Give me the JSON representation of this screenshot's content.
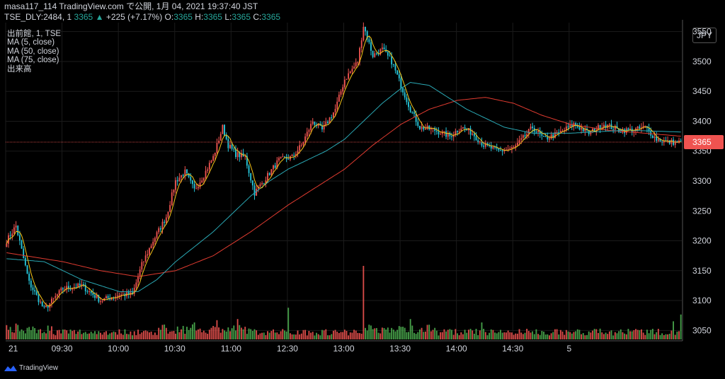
{
  "header": {
    "line1": "masa117_114 TradingView.com で公開, 1月 04, 2021 19:37:40 JST",
    "symbol": "TSE_DLY:2484, 1",
    "last": "3365",
    "arrow": "▲",
    "change": "+225 (+7.17%)",
    "o_label": "O:",
    "o": "3365",
    "h_label": "H:",
    "h": "3365",
    "l_label": "L:",
    "l": "3365",
    "c_label": "C:",
    "c": "3365"
  },
  "legend": {
    "main": "出前館, 1, TSE",
    "ma5": "MA (5, close)",
    "ma50": "MA (50, close)",
    "ma75": "MA (75, close)",
    "volume": "出来高"
  },
  "currency": "JPY",
  "brand": "TradingView",
  "colors": {
    "up": "#ef5350",
    "down": "#26c6da",
    "vol_up": "#ef5350",
    "vol_down": "#4caf50",
    "ma5": "#f5c518",
    "ma50": "#2aa9b5",
    "ma75": "#e03b30",
    "price_line": "#ef5350",
    "grid": "#1b1b1b"
  },
  "chart_data": {
    "type": "candlestick",
    "x_ticks": [
      "21",
      "09:30",
      "10:00",
      "10:30",
      "11:00",
      "12:30",
      "13:00",
      "13:30",
      "14:00",
      "14:30",
      "5"
    ],
    "x_tick_positions": [
      "09:00",
      "09:30",
      "10:00",
      "10:30",
      "11:00",
      "12:30",
      "13:00",
      "13:30",
      "14:00",
      "14:30",
      "15:00"
    ],
    "y_ticks": [
      3050,
      3100,
      3150,
      3200,
      3250,
      3300,
      3350,
      3400,
      3450,
      3500,
      3550
    ],
    "ylim": [
      3035,
      3565
    ],
    "last_price": 3365,
    "last_price_label": "3365",
    "close_anchors": [
      {
        "t": 0,
        "v": 3200
      },
      {
        "t": 5,
        "v": 3225
      },
      {
        "t": 12,
        "v": 3130
      },
      {
        "t": 20,
        "v": 3085
      },
      {
        "t": 30,
        "v": 3120
      },
      {
        "t": 40,
        "v": 3125
      },
      {
        "t": 50,
        "v": 3100
      },
      {
        "t": 60,
        "v": 3110
      },
      {
        "t": 67,
        "v": 3110
      },
      {
        "t": 72,
        "v": 3160
      },
      {
        "t": 78,
        "v": 3200
      },
      {
        "t": 85,
        "v": 3240
      },
      {
        "t": 90,
        "v": 3300
      },
      {
        "t": 95,
        "v": 3315
      },
      {
        "t": 100,
        "v": 3285
      },
      {
        "t": 105,
        "v": 3310
      },
      {
        "t": 110,
        "v": 3340
      },
      {
        "t": 115,
        "v": 3390
      },
      {
        "t": 118,
        "v": 3360
      },
      {
        "t": 122,
        "v": 3345
      },
      {
        "t": 127,
        "v": 3340
      },
      {
        "t": 132,
        "v": 3280
      },
      {
        "t": 138,
        "v": 3305
      },
      {
        "t": 145,
        "v": 3335
      },
      {
        "t": 152,
        "v": 3340
      },
      {
        "t": 157,
        "v": 3360
      },
      {
        "t": 163,
        "v": 3400
      },
      {
        "t": 168,
        "v": 3385
      },
      {
        "t": 175,
        "v": 3420
      },
      {
        "t": 180,
        "v": 3470
      },
      {
        "t": 187,
        "v": 3500
      },
      {
        "t": 190,
        "v": 3560
      },
      {
        "t": 195,
        "v": 3510
      },
      {
        "t": 200,
        "v": 3520
      },
      {
        "t": 205,
        "v": 3500
      },
      {
        "t": 210,
        "v": 3460
      },
      {
        "t": 215,
        "v": 3420
      },
      {
        "t": 220,
        "v": 3390
      },
      {
        "t": 228,
        "v": 3385
      },
      {
        "t": 236,
        "v": 3375
      },
      {
        "t": 242,
        "v": 3390
      },
      {
        "t": 248,
        "v": 3380
      },
      {
        "t": 254,
        "v": 3360
      },
      {
        "t": 262,
        "v": 3350
      },
      {
        "t": 270,
        "v": 3355
      },
      {
        "t": 276,
        "v": 3375
      },
      {
        "t": 280,
        "v": 3390
      },
      {
        "t": 286,
        "v": 3370
      },
      {
        "t": 294,
        "v": 3380
      },
      {
        "t": 302,
        "v": 3395
      },
      {
        "t": 310,
        "v": 3380
      },
      {
        "t": 318,
        "v": 3395
      },
      {
        "t": 326,
        "v": 3385
      },
      {
        "t": 334,
        "v": 3385
      },
      {
        "t": 340,
        "v": 3390
      },
      {
        "t": 346,
        "v": 3370
      },
      {
        "t": 352,
        "v": 3365
      },
      {
        "t": 359,
        "v": 3365
      }
    ],
    "ma50_anchors": [
      {
        "t": 0,
        "v": 3170
      },
      {
        "t": 20,
        "v": 3165
      },
      {
        "t": 40,
        "v": 3135
      },
      {
        "t": 60,
        "v": 3115
      },
      {
        "t": 70,
        "v": 3115
      },
      {
        "t": 80,
        "v": 3135
      },
      {
        "t": 90,
        "v": 3165
      },
      {
        "t": 100,
        "v": 3190
      },
      {
        "t": 110,
        "v": 3215
      },
      {
        "t": 120,
        "v": 3245
      },
      {
        "t": 130,
        "v": 3275
      },
      {
        "t": 140,
        "v": 3300
      },
      {
        "t": 150,
        "v": 3320
      },
      {
        "t": 160,
        "v": 3335
      },
      {
        "t": 170,
        "v": 3350
      },
      {
        "t": 180,
        "v": 3370
      },
      {
        "t": 190,
        "v": 3400
      },
      {
        "t": 200,
        "v": 3430
      },
      {
        "t": 210,
        "v": 3455
      },
      {
        "t": 215,
        "v": 3465
      },
      {
        "t": 225,
        "v": 3460
      },
      {
        "t": 235,
        "v": 3440
      },
      {
        "t": 245,
        "v": 3420
      },
      {
        "t": 255,
        "v": 3405
      },
      {
        "t": 265,
        "v": 3390
      },
      {
        "t": 280,
        "v": 3380
      },
      {
        "t": 300,
        "v": 3380
      },
      {
        "t": 330,
        "v": 3385
      },
      {
        "t": 359,
        "v": 3382
      }
    ],
    "ma75_anchors": [
      {
        "t": 0,
        "v": 3180
      },
      {
        "t": 30,
        "v": 3165
      },
      {
        "t": 50,
        "v": 3150
      },
      {
        "t": 70,
        "v": 3140
      },
      {
        "t": 90,
        "v": 3150
      },
      {
        "t": 110,
        "v": 3175
      },
      {
        "t": 130,
        "v": 3215
      },
      {
        "t": 150,
        "v": 3260
      },
      {
        "t": 170,
        "v": 3300
      },
      {
        "t": 180,
        "v": 3320
      },
      {
        "t": 195,
        "v": 3360
      },
      {
        "t": 210,
        "v": 3395
      },
      {
        "t": 225,
        "v": 3420
      },
      {
        "t": 240,
        "v": 3435
      },
      {
        "t": 255,
        "v": 3440
      },
      {
        "t": 270,
        "v": 3430
      },
      {
        "t": 285,
        "v": 3410
      },
      {
        "t": 300,
        "v": 3395
      },
      {
        "t": 320,
        "v": 3385
      },
      {
        "t": 340,
        "v": 3380
      },
      {
        "t": 359,
        "v": 3375
      }
    ],
    "volume_spikes": [
      {
        "t": 190,
        "v": 6.5
      },
      {
        "t": 150,
        "v": 2.8
      },
      {
        "t": 359,
        "v": 2.2
      },
      {
        "t": 355,
        "v": 1.6
      },
      {
        "t": 100,
        "v": 1.5
      },
      {
        "t": 123,
        "v": 1.8
      },
      {
        "t": 112,
        "v": 1.7
      },
      {
        "t": 215,
        "v": 1.8
      },
      {
        "t": 253,
        "v": 1.5
      },
      {
        "t": 5,
        "v": 1.4
      },
      {
        "t": 225,
        "v": 1.3
      }
    ]
  }
}
